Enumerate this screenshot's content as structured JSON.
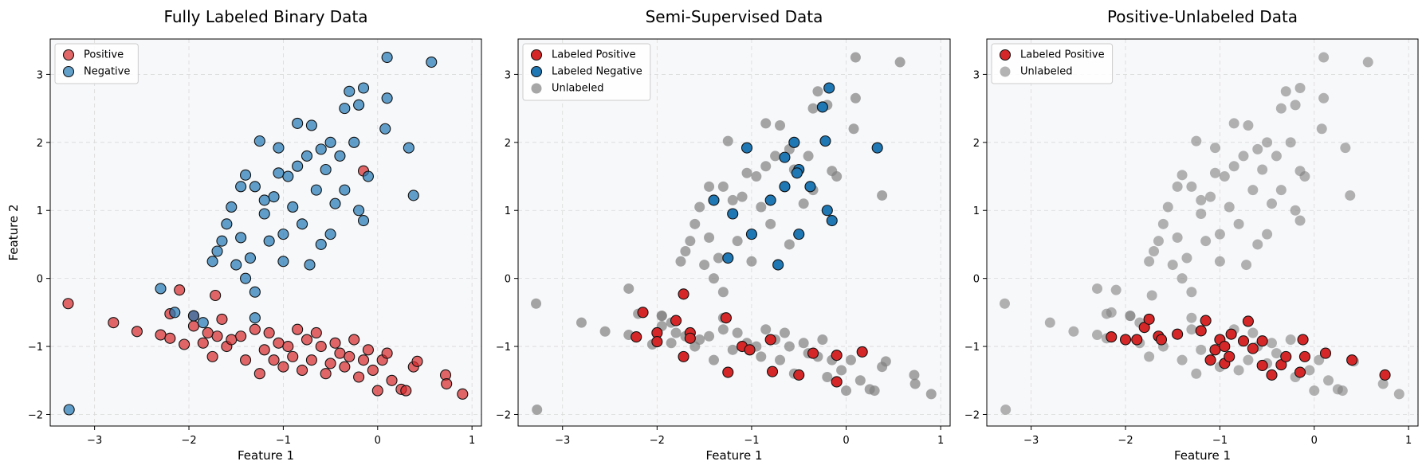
{
  "chart_data": [
    {
      "type": "scatter",
      "title": "Fully Labeled Binary Data",
      "xlabel": "Feature 1",
      "ylabel": "Feature 2",
      "xlim": [
        -3.47,
        1.1
      ],
      "ylim": [
        -2.17,
        3.52
      ],
      "grid": true,
      "legend": "upper-left",
      "xticks": [
        {
          "value": -3,
          "label": "−3"
        },
        {
          "value": -2,
          "label": "−2"
        },
        {
          "value": -1,
          "label": "−1"
        },
        0,
        1
      ],
      "yticks": [
        {
          "value": -2,
          "label": "−2"
        },
        {
          "value": -1,
          "label": "−1"
        },
        0,
        1,
        2,
        3
      ],
      "series": [
        {
          "name": "Positive",
          "color": "#d62728",
          "alpha": 0.7,
          "edge": true,
          "x": [
            -3.28,
            -2.8,
            -2.55,
            -2.2,
            -2.1,
            -2.3,
            -2.2,
            -2.05,
            -1.95,
            -1.85,
            -1.75,
            -1.7,
            -1.65,
            -1.72,
            -1.6,
            -1.55,
            -1.45,
            -1.4,
            -1.3,
            -1.25,
            -1.2,
            -1.15,
            -1.1,
            -1.05,
            -1.0,
            -0.95,
            -0.9,
            -0.85,
            -0.8,
            -0.75,
            -0.7,
            -0.65,
            -0.6,
            -0.55,
            -0.5,
            -0.45,
            -0.4,
            -0.35,
            -0.3,
            -0.25,
            -0.2,
            -0.15,
            -0.1,
            -0.05,
            0.0,
            0.05,
            0.1,
            0.15,
            0.25,
            0.3,
            0.38,
            0.42,
            0.72,
            0.73,
            0.9,
            -0.15,
            -1.95,
            -1.8
          ],
          "y": [
            -0.37,
            -0.65,
            -0.78,
            -0.52,
            -0.17,
            -0.83,
            -0.88,
            -0.97,
            -0.7,
            -0.95,
            -1.15,
            -0.85,
            -0.6,
            -0.25,
            -1.0,
            -0.9,
            -0.85,
            -1.2,
            -0.75,
            -1.4,
            -1.05,
            -0.8,
            -1.2,
            -0.95,
            -1.3,
            -1.0,
            -1.15,
            -0.75,
            -1.35,
            -0.9,
            -1.2,
            -0.8,
            -1.0,
            -1.4,
            -1.25,
            -0.95,
            -1.1,
            -1.3,
            -1.15,
            -0.9,
            -1.45,
            -1.2,
            -1.05,
            -1.35,
            -1.65,
            -1.2,
            -1.1,
            -1.5,
            -1.63,
            -1.65,
            -1.3,
            -1.22,
            -1.42,
            -1.55,
            -1.7,
            1.58,
            -0.55,
            -0.8
          ]
        },
        {
          "name": "Negative",
          "color": "#1f77b4",
          "alpha": 0.7,
          "edge": true,
          "x": [
            -3.27,
            -2.3,
            -2.15,
            -1.95,
            -1.85,
            -1.7,
            -1.75,
            -1.65,
            -1.6,
            -1.55,
            -1.5,
            -1.45,
            -1.4,
            -1.35,
            -1.3,
            -1.3,
            -1.25,
            -1.45,
            -1.4,
            -1.3,
            -1.2,
            -1.15,
            -1.1,
            -1.05,
            -1.0,
            -0.95,
            -0.9,
            -0.85,
            -0.8,
            -0.75,
            -0.72,
            -0.7,
            -0.65,
            -0.6,
            -0.55,
            -0.5,
            -0.5,
            -0.45,
            -0.4,
            -0.35,
            -0.3,
            -0.25,
            -0.2,
            -0.15,
            -0.1,
            -0.15,
            -0.2,
            0.1,
            0.1,
            0.08,
            0.33,
            0.38,
            0.57,
            -0.85,
            -1.05,
            -0.35,
            -1.2,
            -0.6,
            -1.0
          ],
          "y": [
            -1.93,
            -0.15,
            -0.5,
            -0.55,
            -0.65,
            0.4,
            0.25,
            0.55,
            0.8,
            1.05,
            0.2,
            0.6,
            0.0,
            0.3,
            -0.2,
            -0.58,
            2.02,
            1.35,
            1.52,
            1.35,
            0.95,
            0.55,
            1.2,
            1.92,
            0.65,
            1.5,
            1.05,
            1.65,
            0.8,
            1.8,
            0.2,
            2.25,
            1.3,
            0.5,
            1.6,
            0.65,
            2.0,
            1.1,
            1.8,
            2.5,
            2.75,
            2.0,
            2.55,
            2.8,
            1.5,
            0.85,
            1.0,
            2.65,
            3.25,
            2.2,
            1.92,
            1.22,
            3.18,
            2.28,
            1.55,
            1.3,
            1.15,
            1.9,
            0.25
          ]
        }
      ]
    },
    {
      "type": "scatter",
      "title": "Semi-Supervised Data",
      "xlabel": "Feature 1",
      "xlim": [
        -3.47,
        1.1
      ],
      "ylim": [
        -2.17,
        3.52
      ],
      "grid": true,
      "legend": "upper-left",
      "xticks": [
        {
          "value": -3,
          "label": "−3"
        },
        {
          "value": -2,
          "label": "−2"
        },
        {
          "value": -1,
          "label": "−1"
        },
        0,
        1
      ],
      "yticks": [
        {
          "value": -2,
          "label": "−2"
        },
        {
          "value": -1,
          "label": "−1"
        },
        0,
        1,
        2,
        3
      ],
      "series": [
        {
          "name": "Unlabeled",
          "color": "#808080",
          "alpha": 0.7,
          "edge": false,
          "legend_order": 2,
          "x": [
            -3.28,
            -2.8,
            -2.55,
            -2.2,
            -2.3,
            -2.05,
            -1.95,
            -1.85,
            -1.7,
            -1.6,
            -1.55,
            -1.45,
            -1.4,
            -1.3,
            -1.2,
            -1.15,
            -1.05,
            -0.95,
            -0.9,
            -0.85,
            -0.75,
            -0.7,
            -0.65,
            -0.6,
            -0.55,
            -0.45,
            -0.4,
            -0.3,
            -0.25,
            -0.2,
            -0.15,
            -0.05,
            0.0,
            0.05,
            0.15,
            0.25,
            0.3,
            0.38,
            0.42,
            0.72,
            0.73,
            0.9,
            -0.15,
            -1.95,
            -1.8,
            -3.27,
            -2.3,
            -1.95,
            -1.85,
            -1.7,
            -1.75,
            -1.65,
            -1.6,
            -1.55,
            -1.5,
            -1.45,
            -1.4,
            -1.35,
            -1.3,
            -1.3,
            -1.25,
            -1.45,
            -1.3,
            -1.15,
            -1.1,
            -0.95,
            -0.9,
            -0.85,
            -0.8,
            -0.75,
            -0.7,
            -0.6,
            -0.55,
            -0.45,
            -0.4,
            -0.35,
            -0.3,
            -0.2,
            -0.1,
            0.1,
            0.1,
            0.08,
            0.38,
            0.57,
            -0.85,
            -1.05,
            -0.35,
            -1.2,
            -0.6,
            -1.0
          ],
          "y": [
            -0.37,
            -0.65,
            -0.78,
            -0.52,
            -0.83,
            -0.97,
            -0.7,
            -0.95,
            -0.85,
            -1.0,
            -0.9,
            -0.85,
            -1.2,
            -0.75,
            -1.05,
            -0.8,
            -0.95,
            -1.0,
            -1.15,
            -0.75,
            -0.9,
            -1.2,
            -0.8,
            -1.0,
            -1.4,
            -0.95,
            -1.1,
            -1.15,
            -0.9,
            -1.45,
            -1.2,
            -1.35,
            -1.65,
            -1.2,
            -1.5,
            -1.63,
            -1.65,
            -1.3,
            -1.22,
            -1.42,
            -1.55,
            -1.7,
            1.58,
            -0.55,
            -0.8,
            -1.93,
            -0.15,
            -0.55,
            -0.65,
            0.4,
            0.25,
            0.55,
            0.8,
            1.05,
            0.2,
            0.6,
            0.0,
            0.3,
            -0.2,
            -0.58,
            2.02,
            1.35,
            1.35,
            0.55,
            1.2,
            1.5,
            1.05,
            1.65,
            0.8,
            1.8,
            2.25,
            0.5,
            1.6,
            1.1,
            1.8,
            2.5,
            2.75,
            2.55,
            1.5,
            2.65,
            3.25,
            2.2,
            1.22,
            3.18,
            2.28,
            1.55,
            1.3,
            1.15,
            1.9,
            0.25
          ]
        },
        {
          "name": "Labeled Positive",
          "color": "#d62728",
          "alpha": 1,
          "edge": true,
          "legend_order": 0,
          "x": [
            -2.22,
            -2.15,
            -2.0,
            -2.0,
            -1.8,
            -1.72,
            -1.72,
            -1.65,
            -1.65,
            -1.27,
            -1.25,
            -1.1,
            -1.02,
            -0.8,
            -0.78,
            -0.5,
            -0.35,
            -0.1,
            -0.1,
            0.17
          ],
          "y": [
            -0.86,
            -0.5,
            -0.8,
            -0.93,
            -0.62,
            -0.23,
            -1.15,
            -0.8,
            -0.88,
            -0.58,
            -1.38,
            -1.0,
            -1.05,
            -0.9,
            -1.37,
            -1.42,
            -1.1,
            -1.13,
            -1.52,
            -1.08
          ]
        },
        {
          "name": "Labeled Negative",
          "color": "#1f77b4",
          "alpha": 1,
          "edge": true,
          "legend_order": 1,
          "x": [
            -1.25,
            -1.2,
            -1.4,
            -1.05,
            -1.0,
            -0.72,
            -0.8,
            -0.65,
            -0.65,
            -0.55,
            -0.5,
            -0.5,
            -0.38,
            -0.25,
            -0.22,
            -0.18,
            -0.2,
            -0.15,
            0.33,
            -0.52
          ],
          "y": [
            0.3,
            0.95,
            1.15,
            1.92,
            0.65,
            0.2,
            1.15,
            1.35,
            1.78,
            2.0,
            1.6,
            0.65,
            1.35,
            2.52,
            2.02,
            2.8,
            1.0,
            0.85,
            1.92,
            1.55
          ]
        }
      ]
    },
    {
      "type": "scatter",
      "title": "Positive-Unlabeled Data",
      "xlabel": "Feature 1",
      "xlim": [
        -3.47,
        1.1
      ],
      "ylim": [
        -2.17,
        3.52
      ],
      "grid": true,
      "legend": "upper-left",
      "xticks": [
        {
          "value": -3,
          "label": "−3"
        },
        {
          "value": -2,
          "label": "−2"
        },
        {
          "value": -1,
          "label": "−1"
        },
        0,
        1
      ],
      "yticks": [
        {
          "value": -2,
          "label": "−2"
        },
        {
          "value": -1,
          "label": "−1"
        },
        0,
        1,
        2,
        3
      ],
      "series": [
        {
          "name": "Unlabeled",
          "color": "#808080",
          "alpha": 0.6,
          "edge": false,
          "legend_order": 1,
          "x": [
            -3.28,
            -2.8,
            -2.55,
            -2.2,
            -2.1,
            -2.3,
            -2.2,
            -1.85,
            -1.75,
            -1.72,
            -1.6,
            -1.4,
            -1.3,
            -1.25,
            -1.2,
            -1.1,
            -1.0,
            -0.85,
            -0.8,
            -0.7,
            -0.65,
            -0.6,
            -0.5,
            -0.45,
            -0.4,
            -0.25,
            -0.2,
            -0.05,
            0.0,
            0.05,
            0.15,
            0.25,
            0.3,
            0.42,
            0.73,
            0.9,
            -0.15,
            -1.95,
            -3.27,
            -2.3,
            -2.15,
            -1.95,
            -1.85,
            -1.7,
            -1.75,
            -1.65,
            -1.6,
            -1.55,
            -1.5,
            -1.45,
            -1.4,
            -1.35,
            -1.3,
            -1.3,
            -1.25,
            -1.45,
            -1.4,
            -1.3,
            -1.2,
            -1.15,
            -1.1,
            -1.05,
            -1.0,
            -0.95,
            -0.9,
            -0.85,
            -0.8,
            -0.75,
            -0.72,
            -0.7,
            -0.65,
            -0.6,
            -0.55,
            -0.5,
            -0.5,
            -0.45,
            -0.4,
            -0.35,
            -0.3,
            -0.25,
            -0.2,
            -0.15,
            -0.1,
            -0.15,
            -0.2,
            0.1,
            0.1,
            0.08,
            0.33,
            0.38,
            0.57,
            -0.85,
            -1.05,
            -0.35,
            -1.2,
            -0.6,
            -1.0
          ],
          "y": [
            -0.37,
            -0.65,
            -0.78,
            -0.52,
            -0.17,
            -0.83,
            -0.88,
            -0.95,
            -1.15,
            -0.25,
            -1.0,
            -1.2,
            -0.75,
            -1.4,
            -1.05,
            -1.2,
            -1.3,
            -0.75,
            -1.35,
            -1.2,
            -0.8,
            -1.0,
            -1.25,
            -0.95,
            -1.1,
            -0.9,
            -1.45,
            -1.35,
            -1.65,
            -1.2,
            -1.5,
            -1.63,
            -1.65,
            -1.22,
            -1.55,
            -1.7,
            1.58,
            -0.55,
            -1.93,
            -0.15,
            -0.5,
            -0.55,
            -0.65,
            0.4,
            0.25,
            0.55,
            0.8,
            1.05,
            0.2,
            0.6,
            0.0,
            0.3,
            -0.2,
            -0.58,
            2.02,
            1.35,
            1.52,
            1.35,
            0.95,
            0.55,
            1.2,
            1.92,
            0.65,
            1.5,
            1.05,
            1.65,
            0.8,
            1.8,
            0.2,
            2.25,
            1.3,
            0.5,
            1.6,
            0.65,
            2.0,
            1.1,
            1.8,
            2.5,
            2.75,
            2.0,
            2.55,
            2.8,
            1.5,
            0.85,
            1.0,
            2.65,
            3.25,
            2.2,
            1.92,
            1.22,
            3.18,
            2.28,
            1.55,
            1.3,
            1.15,
            1.9,
            0.25
          ]
        },
        {
          "name": "Labeled Positive",
          "color": "#d62728",
          "alpha": 1,
          "edge": true,
          "legend_order": 0,
          "x": [
            -2.15,
            -2.0,
            -1.88,
            -1.8,
            -1.75,
            -1.65,
            -1.62,
            -1.45,
            -1.2,
            -1.15,
            -1.1,
            -1.05,
            -1.0,
            -0.95,
            -0.95,
            -0.9,
            -0.88,
            -0.75,
            -0.7,
            -0.65,
            -0.55,
            -0.55,
            -0.45,
            -0.35,
            -0.3,
            -0.15,
            -0.12,
            -0.1,
            0.12,
            0.4,
            0.75
          ],
          "y": [
            -0.86,
            -0.9,
            -0.9,
            -0.72,
            -0.6,
            -0.85,
            -0.9,
            -0.82,
            -0.77,
            -0.62,
            -1.2,
            -1.05,
            -0.9,
            -1.0,
            -1.25,
            -1.15,
            -0.82,
            -0.92,
            -0.63,
            -1.03,
            -0.92,
            -1.28,
            -1.42,
            -1.27,
            -1.15,
            -1.38,
            -0.9,
            -1.15,
            -1.1,
            -1.2,
            -1.42
          ]
        }
      ]
    }
  ]
}
